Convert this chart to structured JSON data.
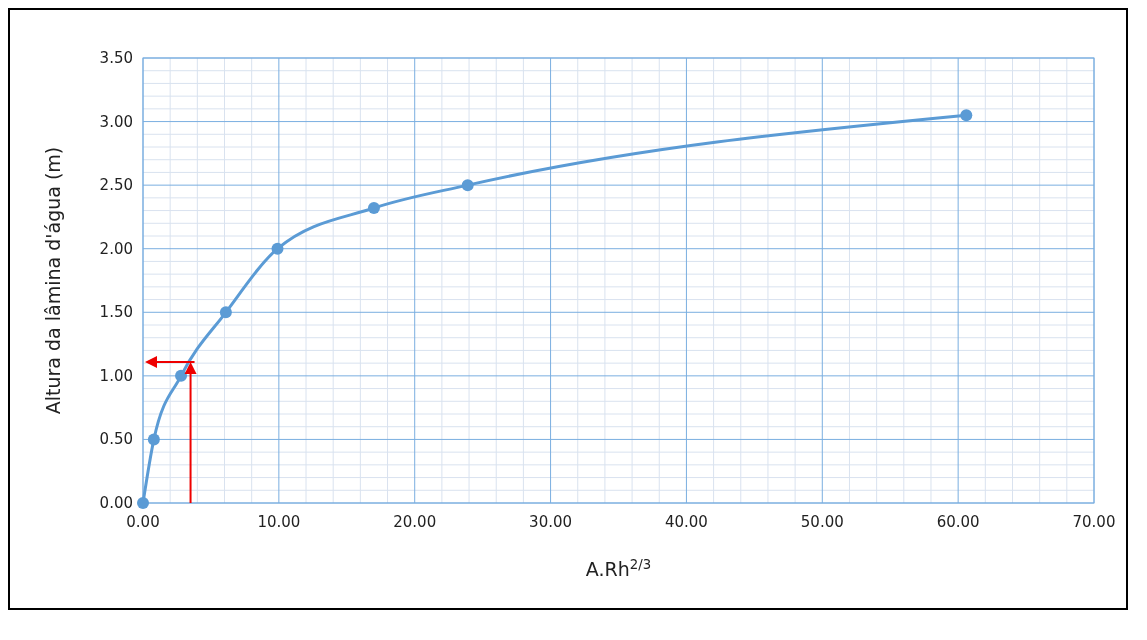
{
  "chart_data": {
    "type": "line",
    "xlabel": "A.Rh$^{2/3}$",
    "ylabel": "Altura da lâmina d'água (m)",
    "x": [
      0,
      0.8,
      2.8,
      6.1,
      9.9,
      17.0,
      23.9,
      60.6
    ],
    "series": [
      {
        "color": "#5b9bd5",
        "values": [
          0,
          0.5,
          1.0,
          1.5,
          2.0,
          2.32,
          2.5,
          3.05
        ]
      }
    ],
    "xlim": [
      0,
      70
    ],
    "ylim": [
      0,
      3.5
    ],
    "xticks": [
      {
        "value": 0,
        "label": "0.00"
      },
      {
        "value": 10,
        "label": "10.00"
      },
      {
        "value": 20,
        "label": "20.00"
      },
      {
        "value": 30,
        "label": "30.00"
      },
      {
        "value": 40,
        "label": "40.00"
      },
      {
        "value": 50,
        "label": "50.00"
      },
      {
        "value": 60,
        "label": "60.00"
      },
      {
        "value": 70,
        "label": "70.00"
      }
    ],
    "yticks": [
      {
        "value": 0,
        "label": "0.00"
      },
      {
        "value": 0.5,
        "label": "0.50"
      },
      {
        "value": 1,
        "label": "1.00"
      },
      {
        "value": 1.5,
        "label": "1.50"
      },
      {
        "value": 2,
        "label": "2.00"
      },
      {
        "value": 2.5,
        "label": "2.50"
      },
      {
        "value": 3,
        "label": "3.00"
      },
      {
        "value": 3.5,
        "label": "3.50"
      }
    ],
    "grid": true,
    "marker": "circle",
    "line_style": "solid"
  }
}
